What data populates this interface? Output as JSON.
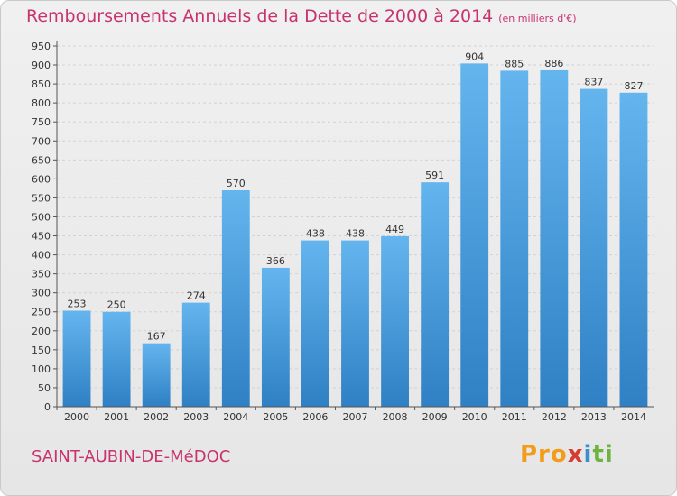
{
  "header": {
    "title": "Remboursements Annuels de la Dette de 2000 à 2014",
    "subtitle": "(en milliers d'€)"
  },
  "footer": {
    "commune": "SAINT-AUBIN-DE-MéDOC",
    "logo": [
      "Pro",
      "x",
      "i",
      "ti"
    ]
  },
  "colors": {
    "bar_top": "#64b5ee",
    "bar_bottom": "#2f80c4",
    "accent_text": "#c8336e"
  },
  "chart_data": {
    "type": "bar",
    "title": "Remboursements Annuels de la Dette de 2000 à 2014",
    "ylabel": "",
    "xlabel": "",
    "categories": [
      "2000",
      "2001",
      "2002",
      "2003",
      "2004",
      "2005",
      "2006",
      "2007",
      "2008",
      "2009",
      "2010",
      "2011",
      "2012",
      "2013",
      "2014"
    ],
    "values": [
      253,
      250,
      167,
      274,
      570,
      366,
      438,
      438,
      449,
      591,
      904,
      885,
      886,
      837,
      827
    ],
    "ylim": [
      0,
      950
    ],
    "ytick_step": 50,
    "grid": true,
    "data_labels": true
  }
}
